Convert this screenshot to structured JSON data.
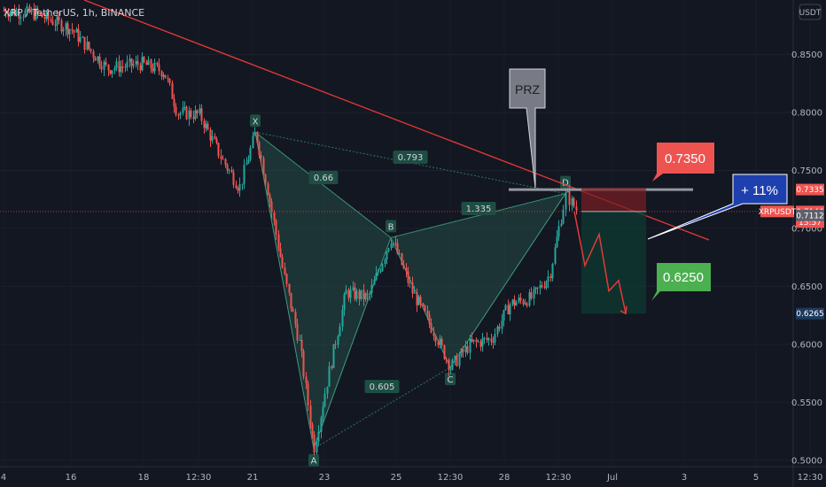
{
  "header": {
    "symbol": "XRP / TetherUS, 1h, BINANCE",
    "currency": "USDT"
  },
  "colors": {
    "bg": "#131722",
    "up": "#26a69a",
    "down": "#ef5350",
    "pattern": "#2e6b5a",
    "trend": "#e53935",
    "accent_blue": "#2962ff"
  },
  "chart_data": {
    "type": "candlestick",
    "ylim": [
      0.4945,
      0.897
    ],
    "y_ticks": [
      "0.8500",
      "0.8000",
      "0.7500",
      "0.7000",
      "0.6500",
      "0.6000",
      "0.5500",
      "0.5000"
    ],
    "y_tick_values": [
      0.85,
      0.8,
      0.75,
      0.7,
      0.65,
      0.6,
      0.55,
      0.5
    ],
    "x_ticks": [
      "4",
      "16",
      "18",
      "12:30",
      "21",
      "23",
      "25",
      "12:30",
      "28",
      "12:30",
      "Jul",
      "3",
      "5",
      "12:30"
    ],
    "x_tick_positions": [
      4,
      80,
      162,
      224,
      285,
      366,
      447,
      508,
      569,
      630,
      691,
      772,
      853,
      914
    ],
    "harmonic_pattern": {
      "points": [
        {
          "label": "X",
          "value": 0.783
        },
        {
          "label": "A",
          "value": 0.51
        },
        {
          "label": "B",
          "value": 0.692
        },
        {
          "label": "C",
          "value": 0.58
        },
        {
          "label": "D",
          "value": 0.73
        }
      ],
      "ratios": [
        {
          "text": "0.66",
          "between": "XB"
        },
        {
          "text": "0.793",
          "between": "XD"
        },
        {
          "text": "1.335",
          "between": "BD"
        },
        {
          "text": "0.605",
          "between": "AC"
        }
      ]
    },
    "annotations": {
      "prz": "PRZ",
      "stop_label": "0.7350",
      "target_label": "0.6250",
      "gain_label": "+ 11%"
    },
    "price_tags": [
      {
        "text": "0.7335",
        "value": 0.7335,
        "color": "#ef5350"
      },
      {
        "text": "XRPUSDT",
        "value": 0.7146,
        "color": "#ef5350"
      },
      {
        "text": "0.7146",
        "value": 0.7146,
        "color": "#ef5350"
      },
      {
        "text": "15:57",
        "value": 0.7146,
        "color": "#ef5350"
      },
      {
        "text": "0.7112",
        "value": 0.7112,
        "color": "#5d606b"
      },
      {
        "text": "0.6265",
        "value": 0.6265,
        "color": "#1e3a5f"
      }
    ],
    "current_price": 0.7146
  }
}
